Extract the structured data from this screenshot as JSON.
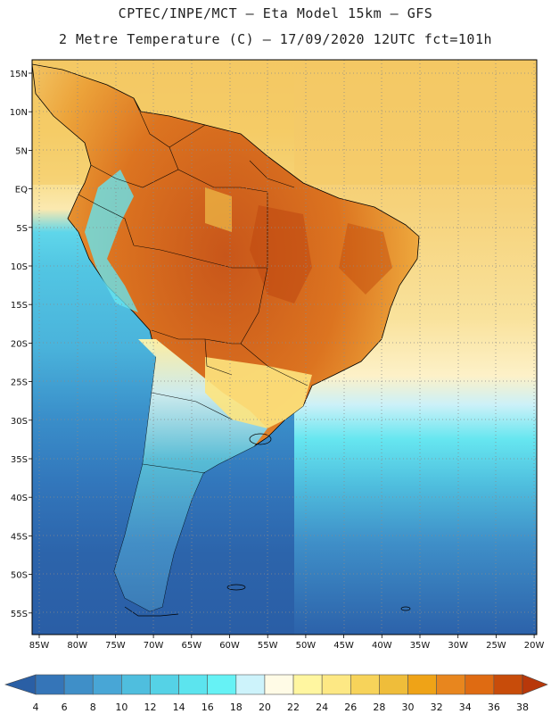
{
  "header": {
    "line1": "CPTEC/INPE/MCT –  Eta Model 15km – GFS",
    "line2": "2 Metre Temperature (C) – 17/09/2020 12UTC fct=101h"
  },
  "map": {
    "lat_labels": [
      "15N",
      "10N",
      "5N",
      "EQ",
      "5S",
      "10S",
      "15S",
      "20S",
      "25S",
      "30S",
      "35S",
      "40S",
      "45S",
      "50S",
      "55S"
    ],
    "lon_labels": [
      "85W",
      "80W",
      "75W",
      "70W",
      "65W",
      "60W",
      "55W",
      "50W",
      "45W",
      "40W",
      "35W",
      "30W",
      "25W",
      "20W"
    ],
    "grid": "dotted",
    "ocean_north_color": "#f2c85a",
    "ocean_south_color": "#2c5fa3",
    "land_hot_color": "#c8581c"
  },
  "colorbar": {
    "labels": [
      "4",
      "6",
      "8",
      "10",
      "12",
      "14",
      "16",
      "18",
      "20",
      "22",
      "24",
      "26",
      "28",
      "30",
      "32",
      "34",
      "36",
      "38"
    ],
    "colors": [
      "#2a5fa5",
      "#3575b8",
      "#3f8fc8",
      "#48a6d6",
      "#4fbede",
      "#55d2e6",
      "#5ce4ee",
      "#66f2f5",
      "#cdf3fb",
      "#fffbe6",
      "#fff6a0",
      "#fde884",
      "#f7d35a",
      "#efbd3a",
      "#efa317",
      "#e8861e",
      "#df6b12",
      "#c84c0a",
      "#b8380a"
    ]
  }
}
